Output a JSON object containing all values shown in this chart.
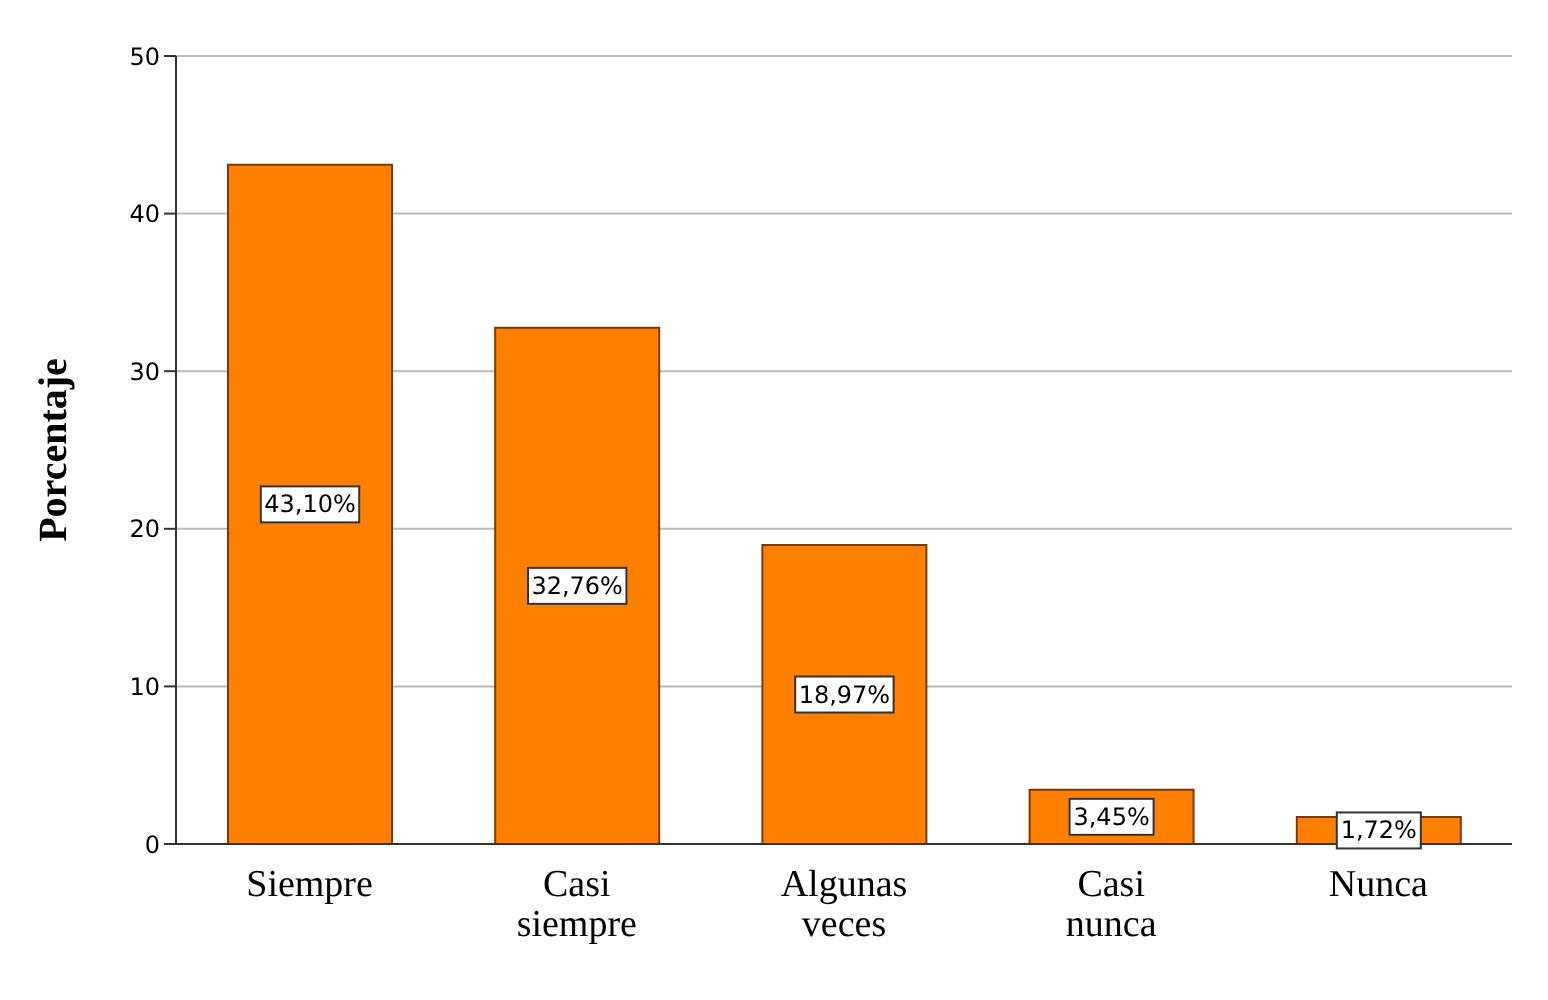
{
  "chart_data": {
    "type": "bar",
    "ylabel": "Porcentaje",
    "categories": [
      "Siempre",
      "Casi siempre",
      "Algunas veces",
      "Casi nunca",
      "Nunca"
    ],
    "values": [
      43.1,
      32.76,
      18.97,
      3.45,
      1.72
    ],
    "value_labels": [
      "43,10%",
      "32,76%",
      "18,97%",
      "3,45%",
      "1,72%"
    ],
    "color": "#ff8000",
    "ylim": [
      0,
      50
    ],
    "yticks": [
      0,
      10,
      20,
      30,
      40,
      50
    ],
    "grid": "y"
  }
}
